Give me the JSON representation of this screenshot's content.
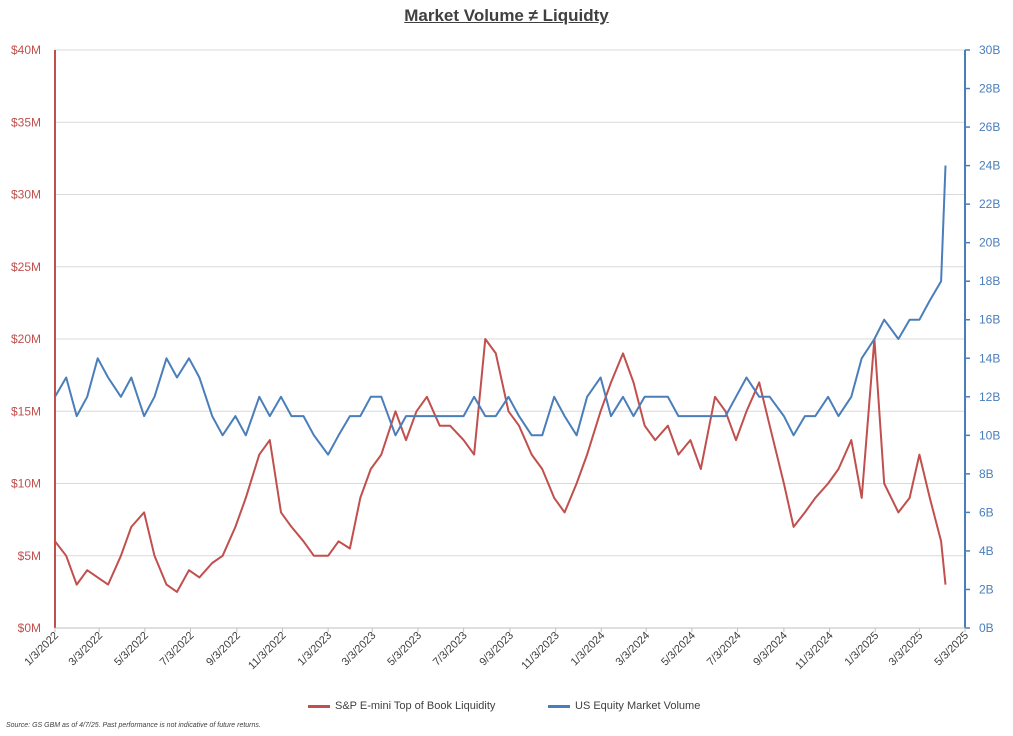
{
  "chart_data": {
    "type": "line",
    "title": "Market Volume ≠ Liquidty",
    "x_tick_labels": [
      "1/3/2022",
      "3/3/2022",
      "5/3/2022",
      "7/3/2022",
      "9/3/2022",
      "11/3/2022",
      "1/3/2023",
      "3/3/2023",
      "5/3/2023",
      "7/3/2023",
      "9/3/2023",
      "11/3/2023",
      "1/3/2024",
      "3/3/2024",
      "5/3/2024",
      "7/3/2024",
      "9/3/2024",
      "11/3/2024",
      "1/3/2025",
      "3/3/2025",
      "5/3/2025"
    ],
    "y_left": {
      "ylim": [
        0,
        40
      ],
      "tick_values": [
        0,
        5,
        10,
        15,
        20,
        25,
        30,
        35,
        40
      ],
      "tick_labels": [
        "$0M",
        "$5M",
        "$10M",
        "$15M",
        "$20M",
        "$25M",
        "$30M",
        "$35M",
        "$40M"
      ],
      "color": "#c0504d"
    },
    "y_right": {
      "ylim": [
        0,
        30
      ],
      "tick_values": [
        0,
        2,
        4,
        6,
        8,
        10,
        12,
        14,
        16,
        18,
        20,
        22,
        24,
        26,
        28,
        30
      ],
      "tick_labels": [
        "0B",
        "2B",
        "4B",
        "6B",
        "8B",
        "10B",
        "12B",
        "14B",
        "16B",
        "18B",
        "20B",
        "22B",
        "24B",
        "26B",
        "28B",
        "30B"
      ],
      "color": "#4a7ebb"
    },
    "grid": true,
    "legend_position": "bottom-center",
    "series": [
      {
        "name": "S&P E-mini Top of Book Liquidity",
        "axis": "left",
        "color": "#c0504d",
        "x": [
          "2022-01-03",
          "2022-01-18",
          "2022-02-01",
          "2022-02-15",
          "2022-03-01",
          "2022-03-15",
          "2022-04-01",
          "2022-04-15",
          "2022-05-02",
          "2022-05-16",
          "2022-06-01",
          "2022-06-15",
          "2022-07-01",
          "2022-07-15",
          "2022-08-01",
          "2022-08-15",
          "2022-09-01",
          "2022-09-15",
          "2022-10-03",
          "2022-10-17",
          "2022-11-01",
          "2022-11-15",
          "2022-12-01",
          "2022-12-15",
          "2023-01-03",
          "2023-01-17",
          "2023-02-01",
          "2023-02-15",
          "2023-03-01",
          "2023-03-15",
          "2023-04-03",
          "2023-04-17",
          "2023-05-01",
          "2023-05-15",
          "2023-06-01",
          "2023-06-15",
          "2023-07-03",
          "2023-07-17",
          "2023-08-01",
          "2023-08-15",
          "2023-09-01",
          "2023-09-15",
          "2023-10-02",
          "2023-10-16",
          "2023-11-01",
          "2023-11-15",
          "2023-12-01",
          "2023-12-15",
          "2024-01-02",
          "2024-01-16",
          "2024-02-01",
          "2024-02-15",
          "2024-03-01",
          "2024-03-15",
          "2024-04-01",
          "2024-04-15",
          "2024-05-01",
          "2024-05-15",
          "2024-06-03",
          "2024-06-17",
          "2024-07-01",
          "2024-07-15",
          "2024-08-01",
          "2024-08-15",
          "2024-09-03",
          "2024-09-16",
          "2024-10-01",
          "2024-10-15",
          "2024-11-01",
          "2024-11-15",
          "2024-12-02",
          "2024-12-16",
          "2025-01-02",
          "2025-01-15",
          "2025-02-03",
          "2025-02-18",
          "2025-03-03",
          "2025-03-17",
          "2025-04-01",
          "2025-04-07"
        ],
        "values": [
          6,
          5,
          3,
          4,
          3.5,
          3,
          5,
          7,
          8,
          5,
          3,
          2.5,
          4,
          3.5,
          4.5,
          5,
          7,
          9,
          12,
          13,
          8,
          7,
          6,
          5,
          5,
          6,
          5.5,
          9,
          11,
          12,
          15,
          13,
          15,
          16,
          14,
          14,
          13,
          12,
          20,
          19,
          15,
          14,
          12,
          11,
          9,
          8,
          10,
          12,
          15,
          17,
          19,
          17,
          14,
          13,
          14,
          12,
          13,
          11,
          16,
          15,
          13,
          15,
          17,
          14,
          10,
          7,
          8,
          9,
          10,
          11,
          13,
          9,
          20,
          10,
          8,
          9,
          12,
          9,
          6,
          3
        ]
      },
      {
        "name": "US Equity Market Volume",
        "axis": "right",
        "color": "#4a7ebb",
        "x": [
          "2022-01-03",
          "2022-01-18",
          "2022-02-01",
          "2022-02-15",
          "2022-03-01",
          "2022-03-15",
          "2022-04-01",
          "2022-04-15",
          "2022-05-02",
          "2022-05-16",
          "2022-06-01",
          "2022-06-15",
          "2022-07-01",
          "2022-07-15",
          "2022-08-01",
          "2022-08-15",
          "2022-09-01",
          "2022-09-15",
          "2022-10-03",
          "2022-10-17",
          "2022-11-01",
          "2022-11-15",
          "2022-12-01",
          "2022-12-15",
          "2023-01-03",
          "2023-01-17",
          "2023-02-01",
          "2023-02-15",
          "2023-03-01",
          "2023-03-15",
          "2023-04-03",
          "2023-04-17",
          "2023-05-01",
          "2023-05-15",
          "2023-06-01",
          "2023-06-15",
          "2023-07-03",
          "2023-07-17",
          "2023-08-01",
          "2023-08-15",
          "2023-09-01",
          "2023-09-15",
          "2023-10-02",
          "2023-10-16",
          "2023-11-01",
          "2023-11-15",
          "2023-12-01",
          "2023-12-15",
          "2024-01-02",
          "2024-01-16",
          "2024-02-01",
          "2024-02-15",
          "2024-03-01",
          "2024-03-15",
          "2024-04-01",
          "2024-04-15",
          "2024-05-01",
          "2024-05-15",
          "2024-06-03",
          "2024-06-17",
          "2024-07-01",
          "2024-07-15",
          "2024-08-01",
          "2024-08-15",
          "2024-09-03",
          "2024-09-16",
          "2024-10-01",
          "2024-10-15",
          "2024-11-01",
          "2024-11-15",
          "2024-12-02",
          "2024-12-16",
          "2025-01-02",
          "2025-01-15",
          "2025-02-03",
          "2025-02-18",
          "2025-03-03",
          "2025-03-17",
          "2025-04-01",
          "2025-04-07"
        ],
        "values": [
          12,
          13,
          11,
          12,
          14,
          13,
          12,
          13,
          11,
          12,
          14,
          13,
          14,
          13,
          11,
          10,
          11,
          10,
          12,
          11,
          12,
          11,
          11,
          10,
          9,
          10,
          11,
          11,
          12,
          12,
          10,
          11,
          11,
          11,
          11,
          11,
          11,
          12,
          11,
          11,
          12,
          11,
          10,
          10,
          12,
          11,
          10,
          12,
          13,
          11,
          12,
          11,
          12,
          12,
          12,
          11,
          11,
          11,
          11,
          11,
          12,
          13,
          12,
          12,
          11,
          10,
          11,
          11,
          12,
          11,
          12,
          14,
          15,
          16,
          15,
          16,
          16,
          17,
          18,
          24
        ]
      }
    ]
  },
  "source_note": "Source: GS GBM as of 4/7/25. Past performance is not indicative of future returns."
}
